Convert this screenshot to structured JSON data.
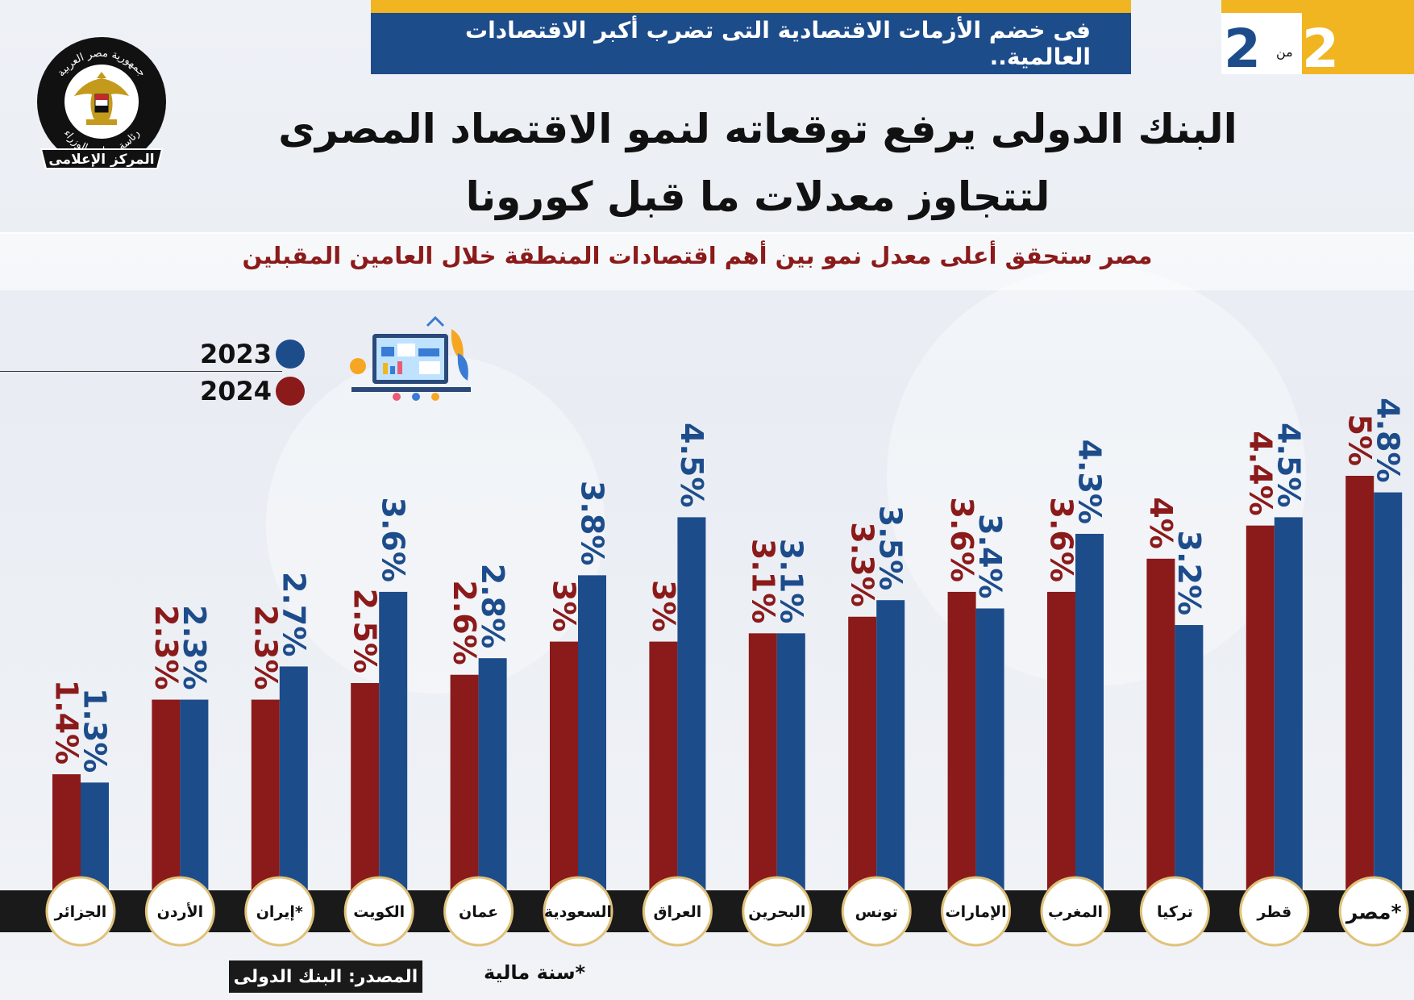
{
  "banner_text": "فى خضم الأزمات الاقتصادية التى تضرب أكبر الاقتصادات العالمية..",
  "page_indicator": {
    "current": "2",
    "of_label": "من",
    "total": "2"
  },
  "logo": {
    "top_text": "جمهورية مصر العربية",
    "bottom_text": "رئاسة مجلس الوزراء",
    "ribbon_text": "المركز الإعلامى"
  },
  "title_line1": "البنك الدولى يرفع توقعاته لنمو الاقتصاد المصرى",
  "title_line2": "لتتجاوز معدلات ما قبل كورونا",
  "subtitle": "مصر ستحقق أعلى معدل نمو بين أهم اقتصادات المنطقة خلال العامين المقبلين",
  "colors": {
    "blue": "#1d4c8b",
    "red": "#8b1a1a",
    "gold": "#f1b522",
    "dark": "#1a1a1a"
  },
  "chart_data": {
    "type": "bar",
    "categories": [
      "الجزائر",
      "الأردن",
      "إيران*",
      "الكويت",
      "عمان",
      "السعودية",
      "العراق",
      "البحرين",
      "تونس",
      "الإمارات",
      "المغرب",
      "تركيا",
      "قطر",
      "مصر*"
    ],
    "series": [
      {
        "name": "2024",
        "color": "#8b1a1a",
        "values": [
          1.4,
          2.3,
          2.3,
          2.5,
          2.6,
          3,
          3,
          3.1,
          3.3,
          3.6,
          3.6,
          4,
          4.4,
          5
        ],
        "labels": [
          "1.4%",
          "2.3%",
          "2.3%",
          "2.5%",
          "2.6%",
          "3%",
          "3%",
          "3.1%",
          "3.3%",
          "3.6%",
          "3.6%",
          "4%",
          "4.4%",
          "5%"
        ]
      },
      {
        "name": "2023",
        "color": "#1d4c8b",
        "values": [
          1.3,
          2.3,
          2.7,
          3.6,
          2.8,
          3.8,
          4.5,
          3.1,
          3.5,
          3.4,
          4.3,
          3.2,
          4.5,
          4.8
        ],
        "labels": [
          "1.3%",
          "2.3%",
          "2.7%",
          "3.6%",
          "2.8%",
          "3.8%",
          "4.5%",
          "3.1%",
          "3.5%",
          "3.4%",
          "4.3%",
          "3.2%",
          "4.5%",
          "4.8%"
        ]
      }
    ],
    "legend": [
      "2023",
      "2024"
    ],
    "legend_position": "top-left",
    "grid": false
  },
  "footnote": "*سنة مالية",
  "source": "المصدر: البنك الدولى"
}
